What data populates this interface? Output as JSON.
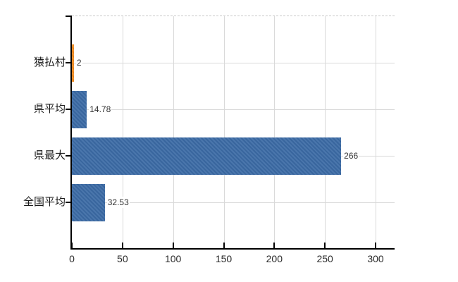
{
  "chart_data": {
    "type": "bar",
    "orientation": "horizontal",
    "title": "",
    "xlabel": "",
    "ylabel": "",
    "categories": [
      "猿払村",
      "県平均",
      "県最大",
      "全国平均"
    ],
    "values": [
      2,
      14.78,
      266,
      32.53
    ],
    "value_labels": [
      "2",
      "14.78",
      "266",
      "32.53"
    ],
    "bar_colors": [
      "#ef8b23",
      "#3c6ca6",
      "#3c6ca6",
      "#3c6ca6"
    ],
    "x_ticks": [
      0,
      50,
      100,
      150,
      200,
      250,
      300
    ],
    "x_tick_labels": [
      "0",
      "50",
      "100",
      "150",
      "200",
      "250",
      "300"
    ],
    "xlim": [
      0,
      318
    ],
    "grid": true,
    "legend": "none",
    "colors": {
      "bar_primary": "#3c6ca6",
      "bar_highlight": "#ef8b23",
      "gridline": "#d9d9d9",
      "axis": "#000000",
      "text": "#1a1a1a"
    }
  }
}
